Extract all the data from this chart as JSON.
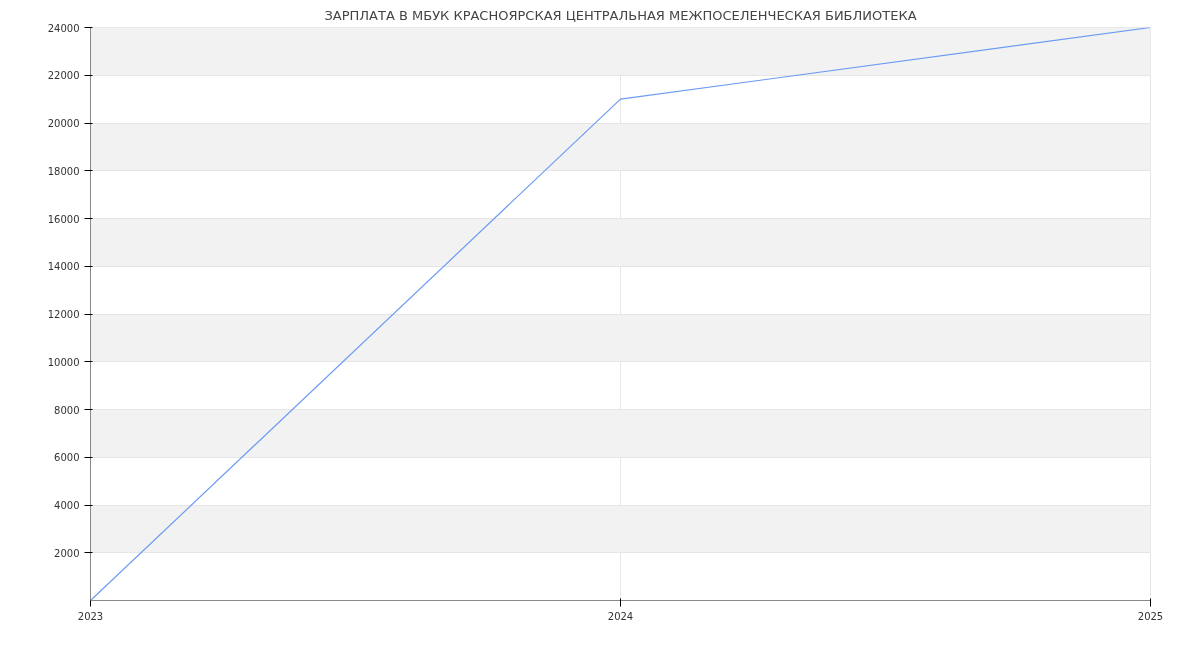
{
  "chart_data": {
    "type": "line",
    "title": "ЗАРПЛАТА В МБУК КРАСНОЯРСКАЯ ЦЕНТРАЛЬНАЯ МЕЖПОСЕЛЕНЧЕСКАЯ БИБЛИОТЕКА",
    "x": [
      2023,
      2024,
      2025
    ],
    "series": [
      {
        "color": "#6b9bf2",
        "values": [
          0,
          21000,
          24000
        ]
      }
    ],
    "xlim": [
      2023,
      2025
    ],
    "xticks": [
      2023,
      2024,
      2025
    ],
    "ylim": [
      0,
      24000
    ],
    "yticks": [
      2000,
      4000,
      6000,
      8000,
      10000,
      12000,
      14000,
      16000,
      18000,
      20000,
      22000,
      24000
    ],
    "grid": true,
    "line_style": "solid"
  }
}
